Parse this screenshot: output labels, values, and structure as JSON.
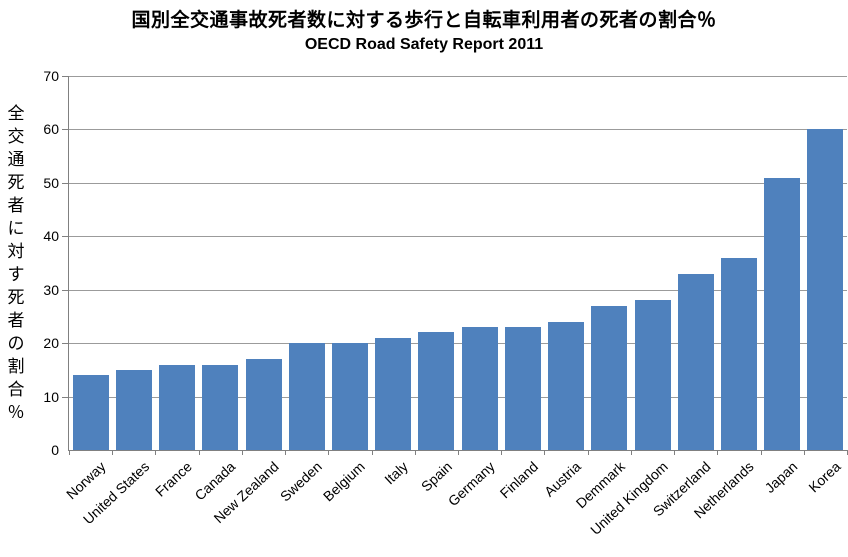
{
  "chart_data": {
    "type": "bar",
    "title": "国別全交通事故死者数に対する歩行と自転車利用者の死者の割合％",
    "subtitle": "OECD Road Safety Report 2011",
    "ylabel": "全交通死者に対す死者の割合％",
    "xlabel": "",
    "categories": [
      "Norway",
      "United States",
      "France",
      "Canada",
      "New Zealand",
      "Sweden",
      "Belgium",
      "Italy",
      "Spain",
      "Germany",
      "Finland",
      "Austria",
      "Demmark",
      "United Kingdom",
      "Switzerland",
      "Netherlands",
      "Japan",
      "Korea"
    ],
    "values": [
      14,
      15,
      16,
      16,
      17,
      20,
      20,
      21,
      22,
      23,
      23,
      24,
      27,
      28,
      33,
      36,
      51,
      60
    ],
    "ylim": [
      0,
      70
    ],
    "yticks": [
      0,
      10,
      20,
      30,
      40,
      50,
      60,
      70
    ],
    "grid": "horizontal",
    "legend_position": "none",
    "bar_color": "#4f81bd",
    "gridline_color": "#9b9b9b",
    "axis_color": "#808080"
  }
}
